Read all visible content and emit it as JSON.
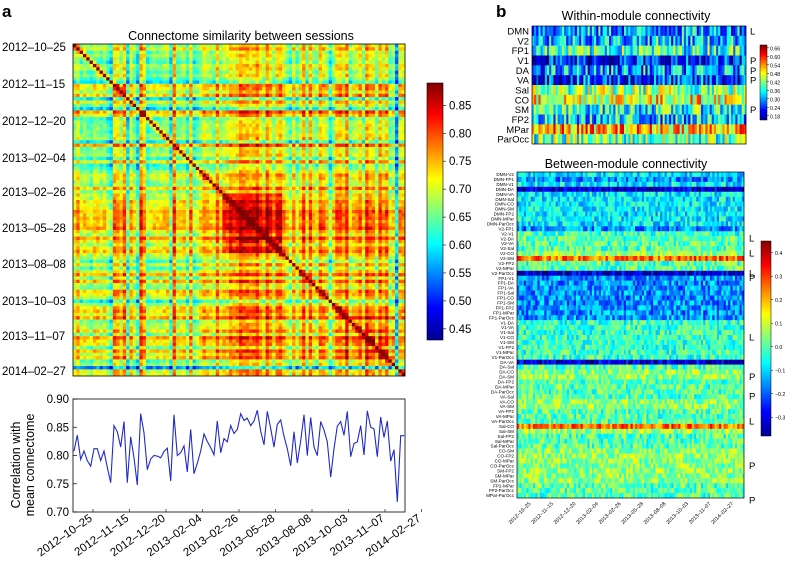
{
  "panels": {
    "a": "a",
    "b": "b"
  },
  "colors": {
    "line": "#1f2bc4",
    "frame": "#000000"
  },
  "chart_data": [
    {
      "name": "similarity-matrix",
      "type": "heatmap",
      "title": "Connectome similarity between sessions",
      "row_labels": [
        "2012–10–25",
        "2012–11–15",
        "2012–12–20",
        "2013–02–04",
        "2013–02–26",
        "2013–05–28",
        "2013–08–08",
        "2013–10–03",
        "2013–11–07",
        "2014–02–27"
      ],
      "n_sessions": 100,
      "clim": [
        0.43,
        0.89
      ],
      "colorbar_ticks": [
        0.45,
        0.5,
        0.55,
        0.6,
        0.65,
        0.7,
        0.75,
        0.8,
        0.85
      ]
    },
    {
      "name": "mean-correlation",
      "type": "line",
      "ylabel_line1": "Correlation with",
      "ylabel_line2": "mean connectome",
      "ylim": [
        0.7,
        0.9
      ],
      "yticks": [
        0.7,
        0.75,
        0.8,
        0.85,
        0.9
      ],
      "xtick_labels": [
        "2012–10–25",
        "2012–11–15",
        "2012–12–20",
        "2013–02–04",
        "2013–02–26",
        "2013–05–28",
        "2013–08–08",
        "2013–10–03",
        "2013–11–07",
        "2014–02–27"
      ],
      "values": [
        0.808,
        0.836,
        0.793,
        0.808,
        0.791,
        0.781,
        0.812,
        0.812,
        0.791,
        0.808,
        0.779,
        0.752,
        0.853,
        0.842,
        0.815,
        0.86,
        0.752,
        0.833,
        0.796,
        0.748,
        0.874,
        0.84,
        0.775,
        0.794,
        0.8,
        0.799,
        0.796,
        0.807,
        0.813,
        0.755,
        0.872,
        0.8,
        0.805,
        0.817,
        0.771,
        0.846,
        0.768,
        0.786,
        0.808,
        0.838,
        0.825,
        0.814,
        0.801,
        0.861,
        0.805,
        0.83,
        0.824,
        0.853,
        0.839,
        0.846,
        0.874,
        0.862,
        0.866,
        0.853,
        0.861,
        0.88,
        0.843,
        0.819,
        0.878,
        0.848,
        0.815,
        0.855,
        0.863,
        0.834,
        0.812,
        0.782,
        0.842,
        0.787,
        0.826,
        0.872,
        0.8,
        0.867,
        0.815,
        0.8,
        0.86,
        0.845,
        0.824,
        0.762,
        0.812,
        0.852,
        0.86,
        0.836,
        0.878,
        0.798,
        0.821,
        0.824,
        0.853,
        0.801,
        0.879,
        0.85,
        0.847,
        0.798,
        0.868,
        0.832,
        0.861,
        0.79,
        0.81,
        0.718,
        0.835,
        0.835
      ]
    },
    {
      "name": "within-module",
      "type": "heatmap",
      "title": "Within-module connectivity",
      "row_labels": [
        "DMN",
        "V2",
        "FP1",
        "V1",
        "DA",
        "VA",
        "Sal",
        "CO",
        "SM",
        "FP2",
        "MPar",
        "ParOcc"
      ],
      "row_means": [
        0.3,
        0.32,
        0.38,
        0.22,
        0.3,
        0.24,
        0.42,
        0.48,
        0.36,
        0.32,
        0.52,
        0.4
      ],
      "side_labels": [
        "L",
        "",
        "",
        "P",
        "P",
        "P",
        "",
        "",
        "P",
        "",
        "",
        ""
      ],
      "clim": [
        0.15,
        0.68
      ],
      "colorbar_ticks": [
        0.18,
        0.24,
        0.3,
        0.36,
        0.42,
        0.48,
        0.54,
        0.6,
        0.66
      ]
    },
    {
      "name": "between-module",
      "type": "heatmap",
      "title": "Between-module connectivity",
      "row_labels": [
        "DMN-V2",
        "DMN-FP1",
        "DMN-V1",
        "DMN-DA",
        "DMN-VA",
        "DMN-Sal",
        "DMN-CO",
        "DMN-SM",
        "DMN-FP2",
        "DMN-MPar",
        "DMN-ParOcc",
        "V2-FP1",
        "V2-V1",
        "V2-DA",
        "V2-VA",
        "V2-Sal",
        "V2-CO",
        "V2-SM",
        "V2-FP2",
        "V2-MPar",
        "V2-ParOcc",
        "FP1-V1",
        "FP1-DA",
        "FP1-VA",
        "FP1-Sal",
        "FP1-CO",
        "FP1-SM",
        "FP1-FP2",
        "FP1-MPar",
        "FP1-ParOcc",
        "V1-DA",
        "V1-VA",
        "V1-Sal",
        "V1-CO",
        "V1-SM",
        "V1-FP2",
        "V1-MPar",
        "V1-ParOcc",
        "DA-VA",
        "DA-Sal",
        "DA-CO",
        "DA-SM",
        "DA-FP2",
        "DA-MPar",
        "DA-ParOcc",
        "VA-Sal",
        "VA-CO",
        "VA-SM",
        "VA-FP2",
        "VA-MPar",
        "VA-ParOcc",
        "Sal-CO",
        "Sal-SM",
        "Sal-FP2",
        "Sal-MPar",
        "Sal-ParOcc",
        "CO-SM",
        "CO-FP2",
        "CO-MPar",
        "CO-ParOcc",
        "SM-FP2",
        "SM-MPar",
        "SM-ParOcc",
        "FP2-MPar",
        "FP2-ParOcc",
        "MPar-ParOcc"
      ],
      "side_labels": [
        {
          "row": 13,
          "text": "L"
        },
        {
          "row": 16,
          "text": "L"
        },
        {
          "row": 20,
          "text": "L"
        },
        {
          "row": 21,
          "text": "P"
        },
        {
          "row": 33,
          "text": "L"
        },
        {
          "row": 41,
          "text": "P"
        },
        {
          "row": 45,
          "text": "P"
        },
        {
          "row": 50,
          "text": "L"
        },
        {
          "row": 59,
          "text": "P"
        },
        {
          "row": 66,
          "text": "P"
        }
      ],
      "clim": [
        -0.38,
        0.45
      ],
      "colorbar_ticks": [
        -0.3,
        -0.2,
        -0.1,
        0.0,
        0.1,
        0.2,
        0.3,
        0.4
      ],
      "colorbar_tick_labels": [
        "−0.3",
        "−0.2",
        "−0.1",
        "0.0",
        "0.1",
        "0.2",
        "0.3",
        "0.4"
      ],
      "xtick_labels": [
        "2012–10–25",
        "2012–11–15",
        "2012–12–20",
        "2013–02–04",
        "2013–02–26",
        "2013–05–28",
        "2013–08–08",
        "2013–10–03",
        "2013–11–07",
        "2014–02–27"
      ]
    }
  ]
}
